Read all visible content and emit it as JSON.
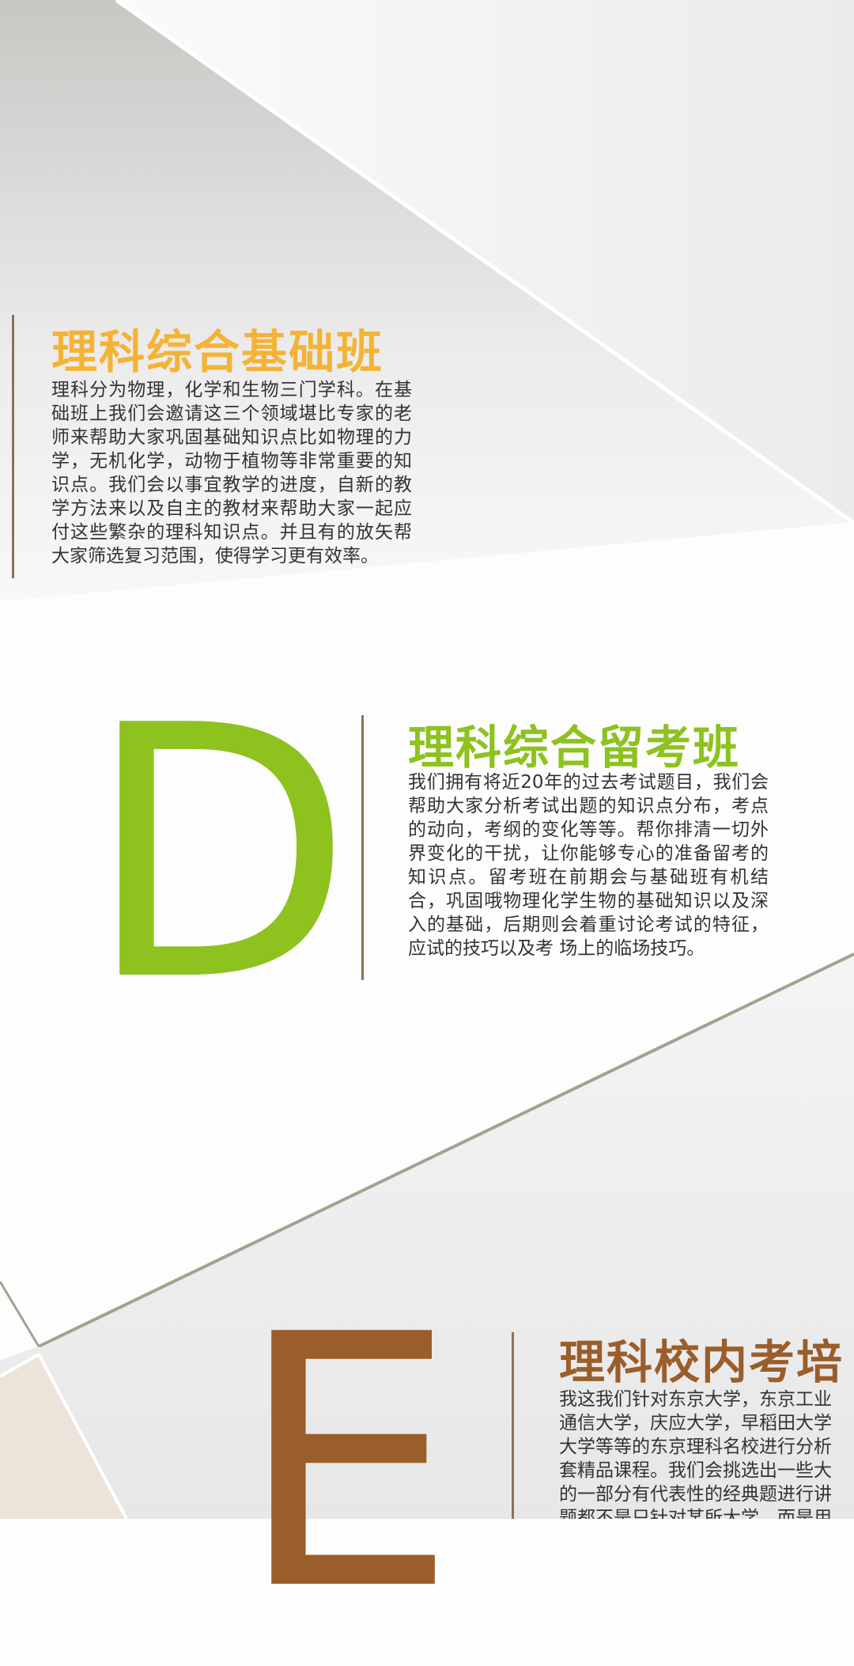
{
  "sections": [
    {
      "title": "理科综合基础班",
      "body": "理科分为物理，化学和生物三门学科。在基础班上我们会邀请这三个领域堪比专家的老师来帮助大家巩固基础知识点比如物理的力学，无机化学，动物于植物等非常重要的知识点。我们会以事宜教学的进度，自新的教学方法来以及自主的教材来帮助大家一起应付这些繁杂的理科知识点。并且有的放矢帮大家筛选复习范围，使得学习更有效率。"
    },
    {
      "letter": "D",
      "title": "理科综合留考班",
      "body": "我们拥有将近20年的过去考试题目，我们会帮助大家分析考试出题的知识点分布，考点的动向，考纲的变化等等。帮你排清一切外界变化的干扰，让你能够专心的准备留考的知识点。留考班在前期会与基础班有机结合，巩固哦物理化学生物的基础知识以及深入的基础，后期则会着重讨论考试的特征，应试的技巧以及考 场上的临场技巧。"
    },
    {
      "letter": "E",
      "title": "理科校内考培",
      "lines": [
        "我这我们针对东京大学，东京工业",
        "通信大学，庆应大学，早稻田大学",
        "大学等等的东京理科名校进行分析",
        "套精品课程。我们会挑选出一些大",
        "的一部分有代表性的经典题进行讲",
        "题都不是只针对某所大学，而是用"
      ]
    }
  ]
}
